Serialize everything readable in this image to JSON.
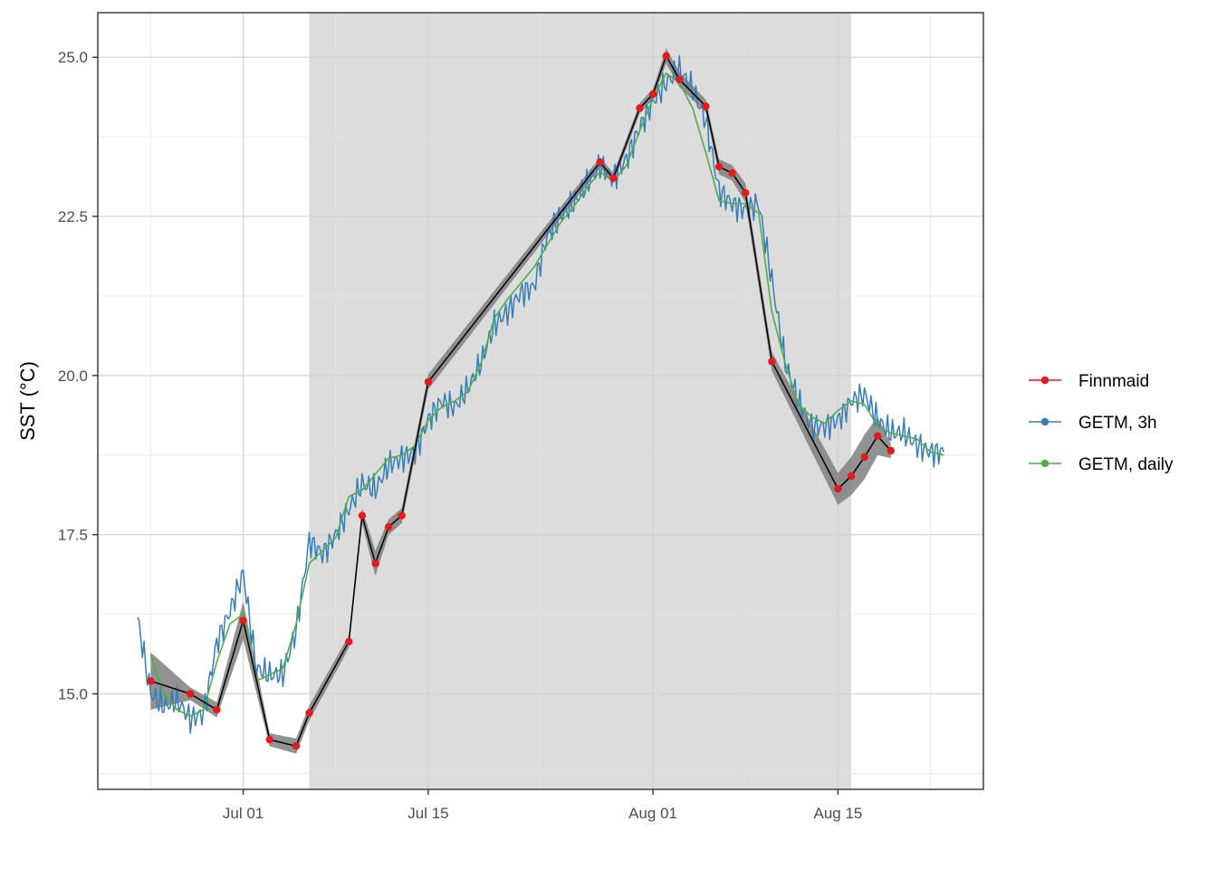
{
  "chart_data": {
    "type": "line",
    "ylabel": "SST (°C)",
    "xlabel": "",
    "ylim": [
      13.5,
      25.7
    ],
    "xlim": [
      "2023-06-20",
      "2023-08-26"
    ],
    "x_ticks": [
      {
        "date": "2023-07-01",
        "label": "Jul 01"
      },
      {
        "date": "2023-07-15",
        "label": "Jul 15"
      },
      {
        "date": "2023-08-01",
        "label": "Aug 01"
      },
      {
        "date": "2023-08-15",
        "label": "Aug 15"
      }
    ],
    "y_ticks": [
      {
        "value": 15.0,
        "label": "15.0"
      },
      {
        "value": 17.5,
        "label": "17.5"
      },
      {
        "value": 20.0,
        "label": "20.0"
      },
      {
        "value": 22.5,
        "label": "22.5"
      },
      {
        "value": 25.0,
        "label": "25.0"
      }
    ],
    "shaded_period": {
      "start": "2023-07-06",
      "end": "2023-08-16"
    },
    "grid": true,
    "legend_position": "right",
    "colors": {
      "finnmaid": "#e41a1c",
      "getm_3h": "#377eb8",
      "getm_daily": "#4daf4a",
      "band": "#7f7f7f",
      "shade": "#dcdcdc"
    },
    "series": [
      {
        "name": "Finnmaid",
        "x": [
          "2023-06-24",
          "2023-06-27",
          "2023-06-29",
          "2023-07-01",
          "2023-07-03",
          "2023-07-05",
          "2023-07-06",
          "2023-07-09",
          "2023-07-10",
          "2023-07-11",
          "2023-07-12",
          "2023-07-13",
          "2023-07-15",
          "2023-07-28",
          "2023-07-29",
          "2023-07-31",
          "2023-08-01",
          "2023-08-02",
          "2023-08-03",
          "2023-08-05",
          "2023-08-06",
          "2023-08-07",
          "2023-08-08",
          "2023-08-10",
          "2023-08-15",
          "2023-08-16",
          "2023-08-17",
          "2023-08-18",
          "2023-08-19"
        ],
        "y": [
          15.2,
          15.0,
          14.75,
          16.15,
          14.28,
          14.18,
          14.7,
          15.82,
          17.8,
          17.05,
          17.62,
          17.8,
          19.9,
          23.35,
          23.1,
          24.2,
          24.42,
          25.02,
          24.65,
          24.23,
          23.28,
          23.18,
          22.87,
          20.22,
          18.22,
          18.42,
          18.72,
          19.05,
          18.82
        ],
        "band_halfwidth": [
          0.45,
          0.1,
          0.12,
          0.3,
          0.1,
          0.12,
          0.12,
          0.1,
          0.12,
          0.2,
          0.12,
          0.12,
          0.12,
          0.08,
          0.08,
          0.08,
          0.08,
          0.12,
          0.12,
          0.1,
          0.12,
          0.12,
          0.15,
          0.15,
          0.25,
          0.3,
          0.35,
          0.3,
          0.12
        ]
      },
      {
        "name": "GETM, 3h",
        "x": [
          "2023-06-23",
          "2023-06-24",
          "2023-06-25",
          "2023-06-26",
          "2023-06-27",
          "2023-06-28",
          "2023-06-29",
          "2023-06-30",
          "2023-07-01",
          "2023-07-02",
          "2023-07-03",
          "2023-07-04",
          "2023-07-05",
          "2023-07-06",
          "2023-07-07",
          "2023-07-08",
          "2023-07-09",
          "2023-07-10",
          "2023-07-11",
          "2023-07-12",
          "2023-07-13",
          "2023-07-14",
          "2023-07-15",
          "2023-07-16",
          "2023-07-17",
          "2023-07-18",
          "2023-07-19",
          "2023-07-20",
          "2023-07-21",
          "2023-07-22",
          "2023-07-23",
          "2023-07-24",
          "2023-07-25",
          "2023-07-26",
          "2023-07-27",
          "2023-07-28",
          "2023-07-29",
          "2023-07-30",
          "2023-07-31",
          "2023-08-01",
          "2023-08-02",
          "2023-08-03",
          "2023-08-04",
          "2023-08-05",
          "2023-08-06",
          "2023-08-07",
          "2023-08-08",
          "2023-08-09",
          "2023-08-10",
          "2023-08-11",
          "2023-08-12",
          "2023-08-13",
          "2023-08-14",
          "2023-08-15",
          "2023-08-16",
          "2023-08-17",
          "2023-08-18",
          "2023-08-19",
          "2023-08-20",
          "2023-08-21",
          "2023-08-22",
          "2023-08-23"
        ],
        "y": [
          16.2,
          15.0,
          14.8,
          14.9,
          14.6,
          14.7,
          15.8,
          16.3,
          16.9,
          15.4,
          15.3,
          15.3,
          16.0,
          17.4,
          17.2,
          17.5,
          17.9,
          18.3,
          18.2,
          18.6,
          18.7,
          18.8,
          19.3,
          19.6,
          19.5,
          19.8,
          20.2,
          20.8,
          21.0,
          21.3,
          21.4,
          22.2,
          22.5,
          22.7,
          23.0,
          23.3,
          23.1,
          23.4,
          23.9,
          24.3,
          24.6,
          24.8,
          24.5,
          24.0,
          22.9,
          22.7,
          22.6,
          22.7,
          21.5,
          20.2,
          19.6,
          19.2,
          19.2,
          19.3,
          19.6,
          19.7,
          19.3,
          19.1,
          19.1,
          18.9,
          18.8,
          18.8
        ]
      },
      {
        "name": "GETM, daily",
        "x": [
          "2023-06-24",
          "2023-06-25",
          "2023-06-26",
          "2023-06-27",
          "2023-06-28",
          "2023-06-29",
          "2023-06-30",
          "2023-07-01",
          "2023-07-02",
          "2023-07-03",
          "2023-07-04",
          "2023-07-05",
          "2023-07-06",
          "2023-07-07",
          "2023-07-08",
          "2023-07-09",
          "2023-07-10",
          "2023-07-11",
          "2023-07-12",
          "2023-07-13",
          "2023-07-14",
          "2023-07-15",
          "2023-07-16",
          "2023-07-17",
          "2023-07-18",
          "2023-07-19",
          "2023-07-20",
          "2023-07-21",
          "2023-07-22",
          "2023-07-23",
          "2023-07-24",
          "2023-07-25",
          "2023-07-26",
          "2023-07-27",
          "2023-07-28",
          "2023-07-29",
          "2023-07-30",
          "2023-07-31",
          "2023-08-01",
          "2023-08-02",
          "2023-08-03",
          "2023-08-04",
          "2023-08-05",
          "2023-08-06",
          "2023-08-07",
          "2023-08-08",
          "2023-08-09",
          "2023-08-10",
          "2023-08-11",
          "2023-08-12",
          "2023-08-13",
          "2023-08-14",
          "2023-08-15",
          "2023-08-16",
          "2023-08-17",
          "2023-08-18",
          "2023-08-19",
          "2023-08-20",
          "2023-08-21",
          "2023-08-22",
          "2023-08-23"
        ],
        "y": [
          15.6,
          15.0,
          14.75,
          14.65,
          14.75,
          15.5,
          16.1,
          16.25,
          15.2,
          15.3,
          15.4,
          16.1,
          17.05,
          17.25,
          17.45,
          18.1,
          18.2,
          18.45,
          18.7,
          18.75,
          18.9,
          19.3,
          19.5,
          19.6,
          19.75,
          20.2,
          20.9,
          21.2,
          21.45,
          21.7,
          22.05,
          22.4,
          22.65,
          22.95,
          23.2,
          23.05,
          23.3,
          23.85,
          24.35,
          24.75,
          24.6,
          24.2,
          23.5,
          22.75,
          22.7,
          22.7,
          22.55,
          21.0,
          20.2,
          19.55,
          19.35,
          19.25,
          19.45,
          19.6,
          19.55,
          19.2,
          19.1,
          19.05,
          19.0,
          18.8,
          18.75
        ]
      }
    ]
  }
}
